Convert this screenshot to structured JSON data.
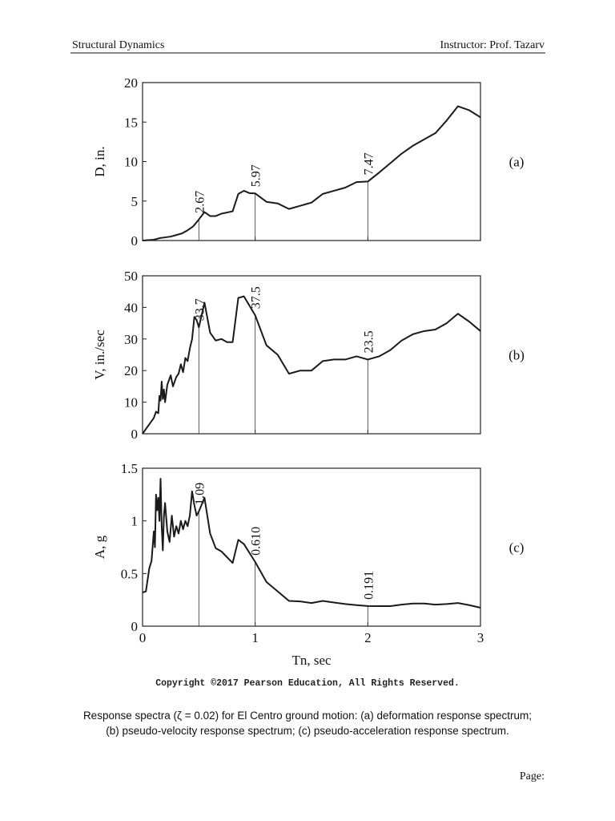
{
  "header": {
    "left": "Structural Dynamics",
    "right": "Instructor: Prof. Tazarv"
  },
  "chart_data": [
    {
      "type": "line",
      "panel": "(a)",
      "ylabel": "D, in.",
      "color": "#1a1a1a",
      "x": [
        0,
        0.1,
        0.15,
        0.2,
        0.25,
        0.3,
        0.35,
        0.4,
        0.45,
        0.5,
        0.55,
        0.6,
        0.65,
        0.7,
        0.8,
        0.85,
        0.9,
        0.95,
        1.0,
        1.1,
        1.2,
        1.3,
        1.4,
        1.5,
        1.6,
        1.7,
        1.8,
        1.9,
        2.0,
        2.1,
        2.2,
        2.3,
        2.4,
        2.5,
        2.6,
        2.7,
        2.8,
        2.9,
        3.0
      ],
      "values": [
        0,
        0.1,
        0.3,
        0.4,
        0.5,
        0.7,
        0.9,
        1.3,
        1.8,
        2.67,
        3.6,
        3.1,
        3.1,
        3.4,
        3.7,
        5.9,
        6.3,
        6.0,
        5.97,
        4.9,
        4.7,
        4.0,
        4.4,
        4.8,
        5.9,
        6.3,
        6.7,
        7.4,
        7.47,
        8.6,
        9.8,
        11.0,
        12.0,
        12.8,
        13.6,
        15.2,
        17.0,
        16.5,
        15.6
      ],
      "annotations": [
        {
          "x": 0.5,
          "value": 2.67
        },
        {
          "x": 1,
          "value": 5.97
        },
        {
          "x": 2,
          "value": 7.47
        }
      ],
      "xlim": [
        0,
        3
      ],
      "xticks": [
        0,
        1,
        2,
        3
      ],
      "ylim": [
        0,
        20
      ],
      "yticks": [
        0,
        5,
        10,
        15,
        20
      ]
    },
    {
      "type": "line",
      "panel": "(b)",
      "ylabel": "V, in./sec",
      "color": "#1a1a1a",
      "x": [
        0,
        0.03,
        0.06,
        0.1,
        0.12,
        0.14,
        0.15,
        0.16,
        0.17,
        0.18,
        0.19,
        0.2,
        0.22,
        0.25,
        0.27,
        0.3,
        0.32,
        0.34,
        0.36,
        0.38,
        0.4,
        0.42,
        0.44,
        0.46,
        0.48,
        0.5,
        0.55,
        0.6,
        0.65,
        0.7,
        0.75,
        0.8,
        0.85,
        0.9,
        1.0,
        1.1,
        1.2,
        1.3,
        1.4,
        1.5,
        1.6,
        1.7,
        1.8,
        1.9,
        2.0,
        2.1,
        2.2,
        2.3,
        2.4,
        2.5,
        2.6,
        2.7,
        2.8,
        2.9,
        3.0
      ],
      "values": [
        0,
        1.5,
        3,
        5,
        7,
        6.5,
        12,
        10.5,
        16.5,
        11,
        14,
        10,
        15.5,
        18.5,
        15,
        18,
        19,
        22,
        19.5,
        24,
        23,
        27,
        30,
        37,
        36,
        33.7,
        41.5,
        32,
        29.5,
        30,
        29,
        29,
        43,
        43.5,
        37.5,
        28,
        25,
        19,
        20,
        20,
        23,
        23.5,
        23.5,
        24.5,
        23.5,
        24.5,
        26.5,
        29.5,
        31.5,
        32.5,
        33,
        35,
        38,
        35.5,
        32.5
      ],
      "annotations": [
        {
          "x": 0.5,
          "value": 33.7
        },
        {
          "x": 1,
          "value": 37.5
        },
        {
          "x": 2,
          "value": 23.5
        }
      ],
      "xlim": [
        0,
        3
      ],
      "xticks": [
        0,
        1,
        2,
        3
      ],
      "ylim": [
        0,
        50
      ],
      "yticks": [
        0,
        10,
        20,
        30,
        40,
        50
      ]
    },
    {
      "type": "line",
      "panel": "(c)",
      "ylabel": "A, g",
      "xlabel": "Tn, sec",
      "color": "#1a1a1a",
      "x": [
        0,
        0.03,
        0.06,
        0.08,
        0.1,
        0.11,
        0.12,
        0.13,
        0.14,
        0.15,
        0.16,
        0.17,
        0.18,
        0.19,
        0.2,
        0.22,
        0.24,
        0.26,
        0.28,
        0.3,
        0.32,
        0.34,
        0.36,
        0.38,
        0.4,
        0.42,
        0.44,
        0.46,
        0.48,
        0.5,
        0.55,
        0.6,
        0.65,
        0.7,
        0.8,
        0.85,
        0.9,
        1.0,
        1.1,
        1.2,
        1.3,
        1.4,
        1.5,
        1.6,
        1.7,
        1.8,
        1.9,
        2.0,
        2.1,
        2.2,
        2.3,
        2.4,
        2.5,
        2.6,
        2.7,
        2.8,
        2.9,
        3.0
      ],
      "values": [
        0.32,
        0.33,
        0.55,
        0.62,
        0.9,
        0.75,
        1.25,
        1.1,
        1.22,
        1.0,
        1.4,
        0.95,
        0.72,
        1.05,
        1.17,
        0.9,
        0.8,
        1.05,
        0.85,
        0.95,
        0.88,
        1.0,
        0.92,
        1.0,
        0.95,
        1.05,
        1.28,
        1.15,
        1.05,
        1.09,
        1.22,
        0.88,
        0.74,
        0.71,
        0.6,
        0.82,
        0.78,
        0.61,
        0.42,
        0.33,
        0.24,
        0.235,
        0.22,
        0.24,
        0.225,
        0.21,
        0.2,
        0.191,
        0.19,
        0.19,
        0.205,
        0.215,
        0.215,
        0.205,
        0.21,
        0.22,
        0.2,
        0.175
      ],
      "annotations": [
        {
          "x": 0.5,
          "value": 1.09
        },
        {
          "x": 1,
          "value": 0.61,
          "label": "0.610"
        },
        {
          "x": 2,
          "value": 0.191
        }
      ],
      "xlim": [
        0,
        3
      ],
      "xticks": [
        0,
        1,
        2,
        3
      ],
      "ylim": [
        0,
        1.5
      ],
      "yticks": [
        0,
        0.5,
        1,
        1.5
      ]
    }
  ],
  "copyright": "Copyright ©2017 Pearson Education, All Rights Reserved.",
  "caption": [
    "Response spectra (ζ = 0.02) for El Centro ground motion: (a) deformation response spectrum;",
    "(b) pseudo-velocity response spectrum; (c) pseudo-acceleration response spectrum."
  ],
  "footer": "Page:"
}
